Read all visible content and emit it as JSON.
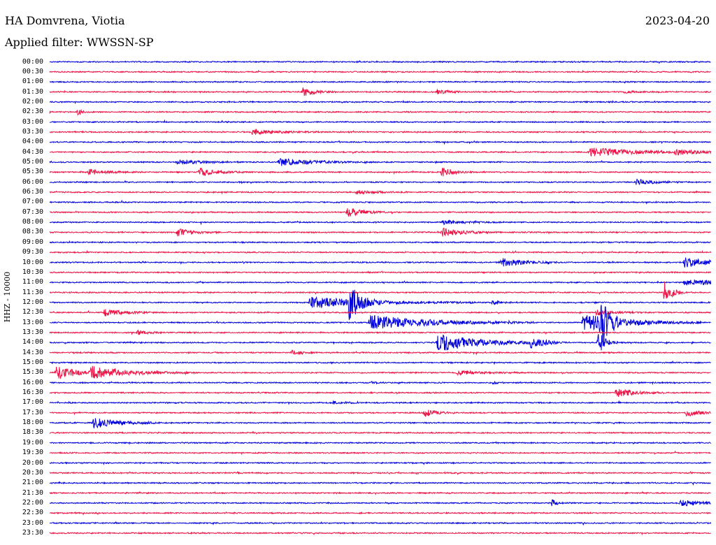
{
  "header": {
    "station": "HA Domvrena, Viotia",
    "date": "2023-04-20",
    "filter": "Applied filter: WWSSN-SP"
  },
  "channel": {
    "label": "HHZ - 10000"
  },
  "colors": {
    "odd_trace": "#0000dd",
    "even_trace": "#ee1144",
    "background": "#ffffff",
    "text": "#000000"
  },
  "chart_data": {
    "type": "helicorder",
    "row_interval_minutes": 30,
    "row_labels": [
      "00:00",
      "00:30",
      "01:00",
      "01:30",
      "02:00",
      "02:30",
      "03:00",
      "03:30",
      "04:00",
      "04:30",
      "05:00",
      "05:30",
      "06:00",
      "06:30",
      "07:00",
      "07:30",
      "08:00",
      "08:30",
      "09:00",
      "09:30",
      "10:00",
      "10:30",
      "11:00",
      "11:30",
      "12:00",
      "12:30",
      "13:00",
      "13:30",
      "14:00",
      "14:30",
      "15:00",
      "15:30",
      "16:00",
      "16:30",
      "17:00",
      "17:30",
      "18:00",
      "18:30",
      "19:00",
      "19:30",
      "20:00",
      "20:30",
      "21:00",
      "21:30",
      "22:00",
      "22:30",
      "23:00",
      "23:30"
    ],
    "x_range_minutes": [
      0,
      30
    ],
    "events": [
      {
        "row": 3,
        "t": 11.5,
        "amp": 6,
        "dur": 0.5
      },
      {
        "row": 3,
        "t": 17.6,
        "amp": 3,
        "dur": 0.5
      },
      {
        "row": 3,
        "t": 26.1,
        "amp": 2,
        "dur": 0.5
      },
      {
        "row": 5,
        "t": 1.3,
        "amp": 5,
        "dur": 0.15
      },
      {
        "row": 7,
        "t": 9.2,
        "amp": 4,
        "dur": 1.0
      },
      {
        "row": 9,
        "t": 24.5,
        "amp": 6,
        "dur": 2.0
      },
      {
        "row": 9,
        "t": 28.4,
        "amp": 3,
        "dur": 1.0
      },
      {
        "row": 10,
        "t": 5.8,
        "amp": 3,
        "dur": 1.0
      },
      {
        "row": 10,
        "t": 10.4,
        "amp": 5,
        "dur": 1.5
      },
      {
        "row": 11,
        "t": 1.8,
        "amp": 4,
        "dur": 0.8
      },
      {
        "row": 11,
        "t": 6.8,
        "amp": 6,
        "dur": 0.7
      },
      {
        "row": 11,
        "t": 17.8,
        "amp": 7,
        "dur": 0.5
      },
      {
        "row": 12,
        "t": 26.6,
        "amp": 4,
        "dur": 0.8
      },
      {
        "row": 13,
        "t": 13.9,
        "amp": 3,
        "dur": 0.8
      },
      {
        "row": 15,
        "t": 13.5,
        "amp": 7,
        "dur": 0.6
      },
      {
        "row": 16,
        "t": 17.8,
        "amp": 3,
        "dur": 1.0
      },
      {
        "row": 17,
        "t": 5.8,
        "amp": 5,
        "dur": 0.7
      },
      {
        "row": 17,
        "t": 17.8,
        "amp": 6,
        "dur": 0.9
      },
      {
        "row": 20,
        "t": 20.5,
        "amp": 6,
        "dur": 1.0
      },
      {
        "row": 20,
        "t": 28.8,
        "amp": 7,
        "dur": 1.0
      },
      {
        "row": 22,
        "t": 28.8,
        "amp": 4,
        "dur": 2.0
      },
      {
        "row": 23,
        "t": 27.9,
        "amp": 20,
        "dur": 0.3
      },
      {
        "row": 24,
        "t": 11.8,
        "amp": 8,
        "dur": 2.5
      },
      {
        "row": 24,
        "t": 13.6,
        "amp": 26,
        "dur": 0.4
      },
      {
        "row": 24,
        "t": 20.1,
        "amp": 4,
        "dur": 0.3
      },
      {
        "row": 25,
        "t": 2.5,
        "amp": 5,
        "dur": 0.8
      },
      {
        "row": 25,
        "t": 24.8,
        "amp": 4,
        "dur": 0.8
      },
      {
        "row": 26,
        "t": 14.5,
        "amp": 11,
        "dur": 2.5
      },
      {
        "row": 26,
        "t": 24.2,
        "amp": 12,
        "dur": 1.8
      },
      {
        "row": 26,
        "t": 25.0,
        "amp": 30,
        "dur": 0.3
      },
      {
        "row": 27,
        "t": 4.0,
        "amp": 3,
        "dur": 0.5
      },
      {
        "row": 28,
        "t": 17.6,
        "amp": 13,
        "dur": 1.8
      },
      {
        "row": 28,
        "t": 21.8,
        "amp": 7,
        "dur": 0.6
      },
      {
        "row": 28,
        "t": 24.9,
        "amp": 16,
        "dur": 0.3
      },
      {
        "row": 29,
        "t": 11.0,
        "amp": 3,
        "dur": 0.4
      },
      {
        "row": 31,
        "t": 0.3,
        "amp": 10,
        "dur": 0.8
      },
      {
        "row": 31,
        "t": 1.9,
        "amp": 8,
        "dur": 1.6
      },
      {
        "row": 31,
        "t": 18.5,
        "amp": 3,
        "dur": 1.0
      },
      {
        "row": 32,
        "t": 14.6,
        "amp": 2,
        "dur": 0.2
      },
      {
        "row": 32,
        "t": 20.1,
        "amp": 2,
        "dur": 0.2
      },
      {
        "row": 33,
        "t": 25.7,
        "amp": 6,
        "dur": 0.8
      },
      {
        "row": 34,
        "t": 12.9,
        "amp": 3,
        "dur": 0.4
      },
      {
        "row": 35,
        "t": 17.0,
        "amp": 6,
        "dur": 0.5
      },
      {
        "row": 35,
        "t": 28.9,
        "amp": 6,
        "dur": 0.5
      },
      {
        "row": 36,
        "t": 2.0,
        "amp": 8,
        "dur": 1.0
      },
      {
        "row": 44,
        "t": 22.8,
        "amp": 5,
        "dur": 0.2
      },
      {
        "row": 44,
        "t": 28.6,
        "amp": 5,
        "dur": 0.9
      }
    ]
  }
}
